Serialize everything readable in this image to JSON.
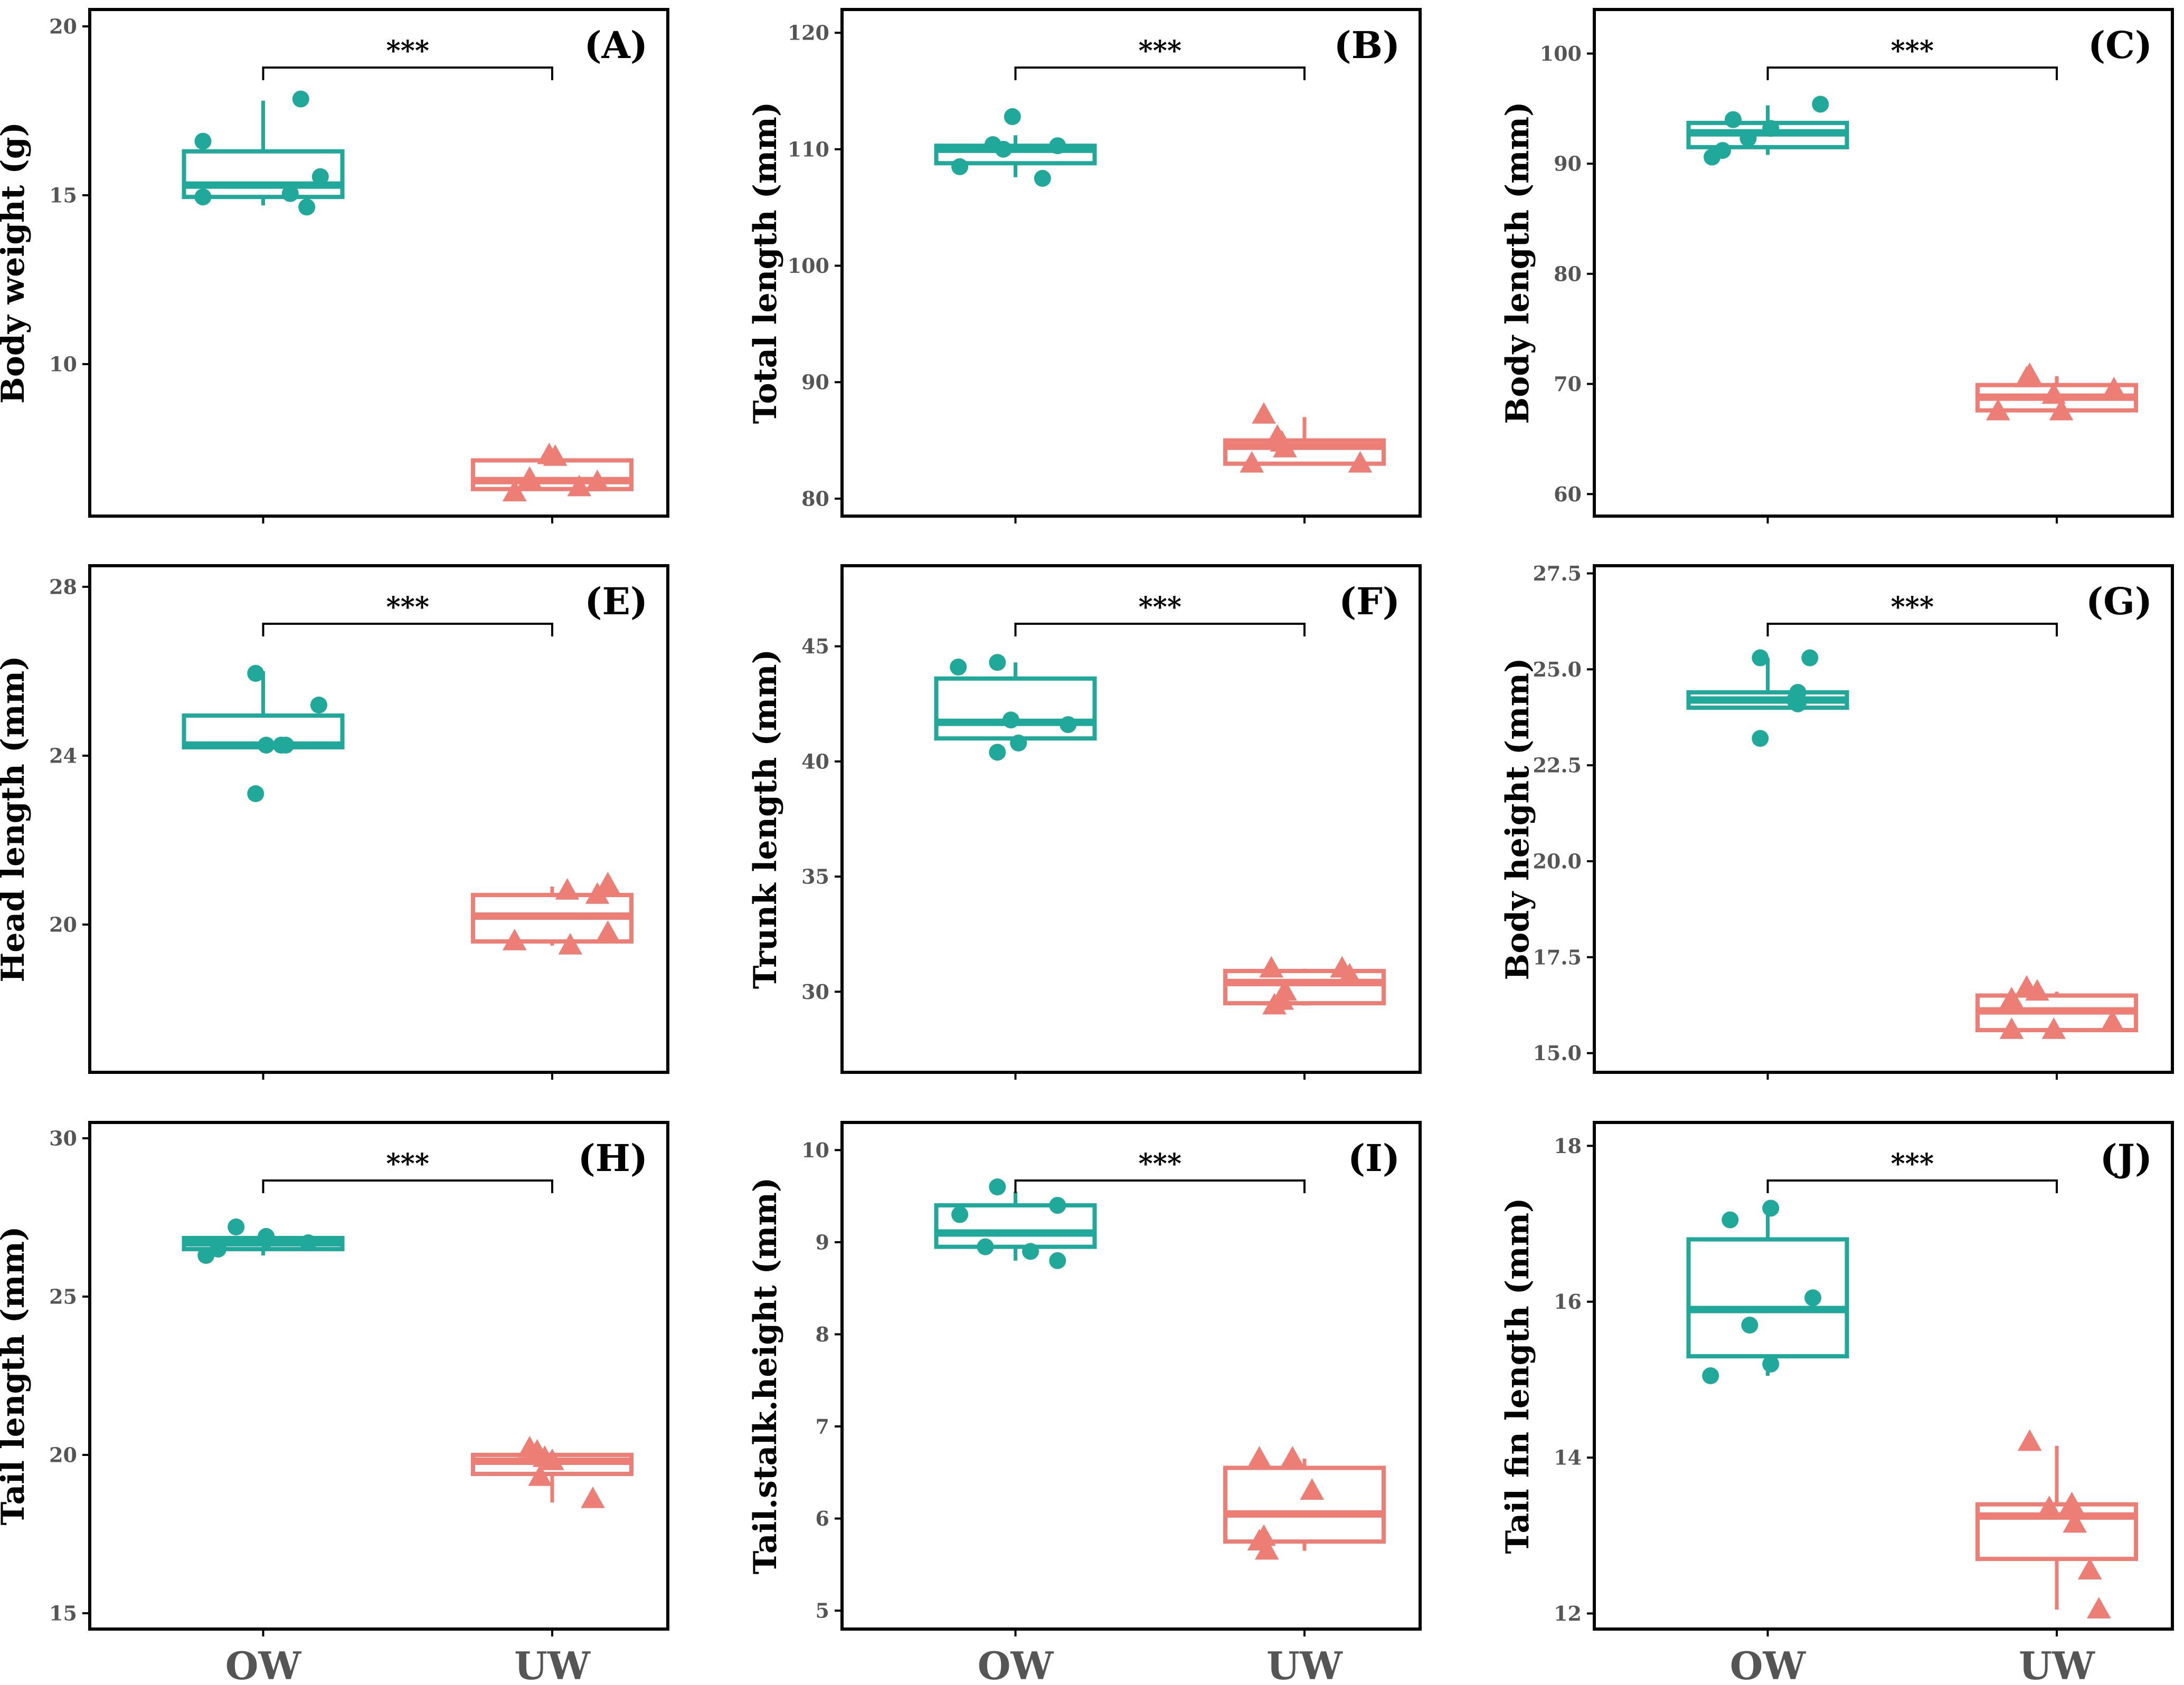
{
  "colors": {
    "ow": "#20a99a",
    "uw": "#ec7e76",
    "axis": "#000000",
    "tick_text": "#555555"
  },
  "categories": [
    "OW",
    "UW"
  ],
  "significance": "***",
  "chart_data": [
    {
      "type": "box",
      "panel": "(A)",
      "ylabel": "Body weight (g)",
      "ylim": [
        5.5,
        20.5
      ],
      "yticks": [
        10,
        15,
        20
      ],
      "tick_labels": [
        "10",
        "15",
        "20"
      ],
      "categories": [
        "OW",
        "UW"
      ],
      "series": [
        {
          "name": "OW",
          "box": {
            "whislo": 14.7,
            "q1": 14.95,
            "med": 15.3,
            "q3": 16.3,
            "whishi": 17.8
          },
          "points": [
            [
              -0.4,
              16.6
            ],
            [
              -0.4,
              14.95
            ],
            [
              0.25,
              17.85
            ],
            [
              0.18,
              15.05
            ],
            [
              0.29,
              14.65
            ],
            [
              0.38,
              15.55
            ]
          ]
        },
        {
          "name": "UW",
          "box": {
            "whislo": 6.3,
            "q1": 6.3,
            "med": 6.55,
            "q3": 7.15,
            "whishi": 7.25
          },
          "points": [
            [
              -0.25,
              6.2
            ],
            [
              -0.15,
              6.6
            ],
            [
              -0.02,
              7.3
            ],
            [
              0.02,
              7.25
            ],
            [
              0.18,
              6.35
            ],
            [
              0.3,
              6.5
            ]
          ]
        }
      ]
    },
    {
      "type": "box",
      "panel": "(B)",
      "ylabel": "Total length (mm)",
      "ylim": [
        78.5,
        122
      ],
      "yticks": [
        80,
        90,
        100,
        110,
        120
      ],
      "tick_labels": [
        "80",
        "90",
        "100",
        "110",
        "120"
      ],
      "categories": [
        "OW",
        "UW"
      ],
      "series": [
        {
          "name": "OW",
          "box": {
            "whislo": 107.6,
            "q1": 108.8,
            "med": 110.0,
            "q3": 110.3,
            "whishi": 111.2
          },
          "points": [
            [
              -0.37,
              108.5
            ],
            [
              -0.15,
              110.4
            ],
            [
              -0.08,
              110.0
            ],
            [
              -0.02,
              112.8
            ],
            [
              0.18,
              107.5
            ],
            [
              0.28,
              110.3
            ]
          ]
        },
        {
          "name": "UW",
          "box": {
            "whislo": 83.0,
            "q1": 83.0,
            "med": 84.5,
            "q3": 85.0,
            "whishi": 87.0
          },
          "points": [
            [
              -0.35,
              83.0
            ],
            [
              -0.27,
              87.2
            ],
            [
              -0.18,
              85.3
            ],
            [
              -0.15,
              84.8
            ],
            [
              -0.13,
              84.3
            ],
            [
              0.37,
              83.0
            ]
          ]
        }
      ]
    },
    {
      "type": "box",
      "panel": "(C)",
      "ylabel": "Body length (mm)",
      "ylim": [
        58,
        104
      ],
      "yticks": [
        60,
        70,
        80,
        90,
        100
      ],
      "tick_labels": [
        "60",
        "70",
        "80",
        "90",
        "100"
      ],
      "categories": [
        "OW",
        "UW"
      ],
      "series": [
        {
          "name": "OW",
          "box": {
            "whislo": 90.8,
            "q1": 91.5,
            "med": 92.8,
            "q3": 93.7,
            "whishi": 95.3
          },
          "points": [
            [
              -0.37,
              90.6
            ],
            [
              -0.3,
              91.2
            ],
            [
              -0.23,
              94.0
            ],
            [
              -0.13,
              92.3
            ],
            [
              0.02,
              93.2
            ],
            [
              0.35,
              95.4
            ]
          ]
        },
        {
          "name": "UW",
          "box": {
            "whislo": 67.4,
            "q1": 67.6,
            "med": 68.8,
            "q3": 69.9,
            "whishi": 70.7
          },
          "points": [
            [
              -0.39,
              67.5
            ],
            [
              -0.2,
              70.5
            ],
            [
              -0.18,
              70.8
            ],
            [
              -0.02,
              69.0
            ],
            [
              0.03,
              67.5
            ],
            [
              0.38,
              69.5
            ]
          ]
        }
      ]
    },
    {
      "type": "box",
      "panel": "(E)",
      "ylabel": "Head length (mm)",
      "ylim": [
        16.5,
        28.5
      ],
      "yticks": [
        20,
        24,
        28
      ],
      "tick_labels": [
        "20",
        "24",
        "28"
      ],
      "categories": [
        "OW",
        "UW"
      ],
      "series": [
        {
          "name": "OW",
          "box": {
            "whislo": 24.2,
            "q1": 24.2,
            "med": 24.25,
            "q3": 24.95,
            "whishi": 26.0
          },
          "points": [
            [
              -0.05,
              25.95
            ],
            [
              0.02,
              24.25
            ],
            [
              0.12,
              24.25
            ],
            [
              0.15,
              24.25
            ],
            [
              -0.05,
              23.1
            ],
            [
              0.37,
              25.2
            ]
          ]
        },
        {
          "name": "UW",
          "box": {
            "whislo": 19.5,
            "q1": 19.6,
            "med": 20.2,
            "q3": 20.7,
            "whishi": 20.9
          },
          "points": [
            [
              -0.25,
              19.6
            ],
            [
              0.1,
              20.8
            ],
            [
              0.12,
              19.5
            ],
            [
              0.3,
              20.7
            ],
            [
              0.37,
              20.95
            ],
            [
              0.37,
              19.8
            ]
          ]
        }
      ]
    },
    {
      "type": "box",
      "panel": "(F)",
      "ylabel": "Trunk length (mm)",
      "ylim": [
        26.5,
        48.5
      ],
      "yticks": [
        30,
        35,
        40,
        45
      ],
      "tick_labels": [
        "30",
        "35",
        "40",
        "45"
      ],
      "categories": [
        "OW",
        "UW"
      ],
      "series": [
        {
          "name": "OW",
          "box": {
            "whislo": 40.6,
            "q1": 41.0,
            "med": 41.7,
            "q3": 43.6,
            "whishi": 44.3
          },
          "points": [
            [
              -0.38,
              44.1
            ],
            [
              -0.12,
              44.3
            ],
            [
              -0.12,
              40.4
            ],
            [
              -0.03,
              41.8
            ],
            [
              0.02,
              40.8
            ],
            [
              0.35,
              41.6
            ]
          ]
        },
        {
          "name": "UW",
          "box": {
            "whislo": 29.4,
            "q1": 29.5,
            "med": 30.4,
            "q3": 30.9,
            "whishi": 31.0
          },
          "points": [
            [
              -0.22,
              31.0
            ],
            [
              -0.2,
              29.4
            ],
            [
              -0.15,
              29.6
            ],
            [
              -0.13,
              30.0
            ],
            [
              0.25,
              31.0
            ],
            [
              0.3,
              30.7
            ]
          ]
        }
      ]
    },
    {
      "type": "box",
      "panel": "(G)",
      "ylabel": "Body height (mm)",
      "ylim": [
        14.5,
        27.7
      ],
      "yticks": [
        15,
        17.5,
        20,
        22.5,
        25,
        27.5
      ],
      "tick_labels": [
        "15.0",
        "17.5",
        "20.0",
        "22.5",
        "25.0",
        "27.5"
      ],
      "categories": [
        "OW",
        "UW"
      ],
      "series": [
        {
          "name": "OW",
          "box": {
            "whislo": 24.0,
            "q1": 24.0,
            "med": 24.2,
            "q3": 24.4,
            "whishi": 25.3
          },
          "points": [
            [
              -0.05,
              25.3
            ],
            [
              0.2,
              24.4
            ],
            [
              0.2,
              24.1
            ],
            [
              0.18,
              24.2
            ],
            [
              -0.05,
              23.2
            ],
            [
              0.28,
              25.3
            ]
          ]
        },
        {
          "name": "UW",
          "box": {
            "whislo": 15.6,
            "q1": 15.6,
            "med": 16.1,
            "q3": 16.5,
            "whishi": 16.6
          },
          "points": [
            [
              -0.3,
              16.4
            ],
            [
              -0.3,
              15.6
            ],
            [
              -0.2,
              16.7
            ],
            [
              -0.13,
              16.6
            ],
            [
              -0.02,
              15.6
            ],
            [
              0.37,
              15.8
            ]
          ]
        }
      ]
    },
    {
      "type": "box",
      "panel": "(H)",
      "ylabel": "Tail length (mm)",
      "ylim": [
        14.5,
        30.5
      ],
      "yticks": [
        15,
        20,
        25,
        30
      ],
      "tick_labels": [
        "15",
        "20",
        "25",
        "30"
      ],
      "categories": [
        "OW",
        "UW"
      ],
      "series": [
        {
          "name": "OW",
          "box": {
            "whislo": 26.3,
            "q1": 26.5,
            "med": 26.7,
            "q3": 26.85,
            "whishi": 26.9
          },
          "points": [
            [
              -0.38,
              26.3
            ],
            [
              -0.3,
              26.5
            ],
            [
              -0.18,
              27.2
            ],
            [
              0.02,
              26.9
            ],
            [
              0.02,
              26.8
            ],
            [
              0.3,
              26.7
            ]
          ]
        },
        {
          "name": "UW",
          "box": {
            "whislo": 18.5,
            "q1": 19.4,
            "med": 19.8,
            "q3": 20.0,
            "whishi": 20.0
          },
          "points": [
            [
              -0.1,
              20.1
            ],
            [
              -0.08,
              19.3
            ],
            [
              -0.05,
              19.9
            ],
            [
              0.0,
              19.8
            ],
            [
              0.27,
              18.6
            ],
            [
              -0.15,
              20.2
            ]
          ]
        }
      ]
    },
    {
      "type": "box",
      "panel": "(I)",
      "ylabel": "Tail.stalk.height (mm)",
      "ylim": [
        4.8,
        10.3
      ],
      "yticks": [
        5,
        6,
        7,
        8,
        9,
        10
      ],
      "tick_labels": [
        "5",
        "6",
        "7",
        "8",
        "9",
        "10"
      ],
      "categories": [
        "OW",
        "UW"
      ],
      "series": [
        {
          "name": "OW",
          "box": {
            "whislo": 8.8,
            "q1": 8.95,
            "med": 9.1,
            "q3": 9.4,
            "whishi": 9.55
          },
          "points": [
            [
              -0.37,
              9.3
            ],
            [
              -0.2,
              8.95
            ],
            [
              -0.12,
              9.6
            ],
            [
              0.1,
              8.9
            ],
            [
              0.28,
              9.4
            ],
            [
              0.28,
              8.8
            ]
          ]
        },
        {
          "name": "UW",
          "box": {
            "whislo": 5.65,
            "q1": 5.75,
            "med": 6.05,
            "q3": 6.55,
            "whishi": 6.65
          },
          "points": [
            [
              -0.3,
              6.65
            ],
            [
              -0.3,
              5.75
            ],
            [
              -0.25,
              5.65
            ],
            [
              -0.08,
              6.65
            ],
            [
              0.05,
              6.3
            ],
            [
              -0.27,
              5.8
            ]
          ]
        }
      ]
    },
    {
      "type": "box",
      "panel": "(J)",
      "ylabel": "Tail fin length (mm)",
      "ylim": [
        11.8,
        18.3
      ],
      "yticks": [
        12,
        14,
        16,
        18
      ],
      "tick_labels": [
        "12",
        "14",
        "16",
        "18"
      ],
      "categories": [
        "OW",
        "UW"
      ],
      "series": [
        {
          "name": "OW",
          "box": {
            "whislo": 15.05,
            "q1": 15.3,
            "med": 15.9,
            "q3": 16.8,
            "whishi": 17.2
          },
          "points": [
            [
              -0.38,
              15.05
            ],
            [
              -0.25,
              17.05
            ],
            [
              -0.12,
              15.7
            ],
            [
              0.02,
              17.2
            ],
            [
              0.02,
              15.2
            ],
            [
              0.3,
              16.05
            ]
          ]
        },
        {
          "name": "UW",
          "box": {
            "whislo": 12.05,
            "q1": 12.7,
            "med": 13.25,
            "q3": 13.4,
            "whishi": 14.15
          },
          "points": [
            [
              -0.18,
              14.2
            ],
            [
              -0.05,
              13.35
            ],
            [
              0.1,
              13.4
            ],
            [
              0.12,
              13.15
            ],
            [
              0.22,
              12.55
            ],
            [
              0.28,
              12.05
            ]
          ]
        }
      ]
    }
  ]
}
